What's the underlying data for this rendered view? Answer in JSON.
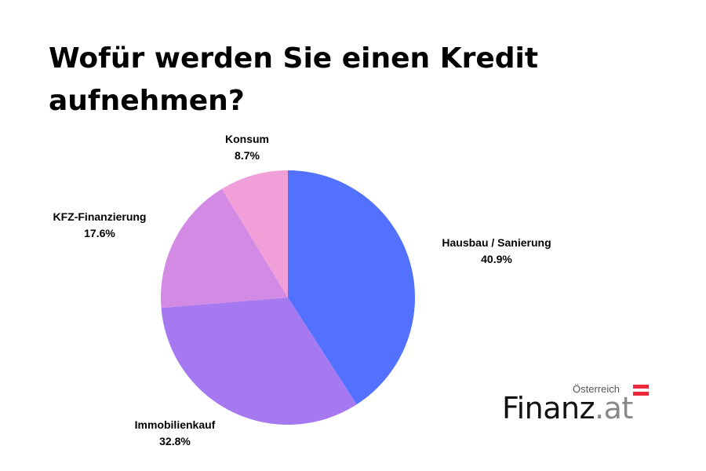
{
  "title": "Wofür werden Sie einen Kredit aufnehmen?",
  "logo": {
    "country": "Österreich",
    "brand_main": "Finanz",
    "brand_tld": ".at",
    "flag_colors": [
      "#ed2939",
      "#ffffff",
      "#ed2939"
    ]
  },
  "chart_data": {
    "type": "pie",
    "title": "Wofür werden Sie einen Kredit aufnehmen?",
    "start_angle_deg": 0,
    "direction": "clockwise",
    "slices": [
      {
        "label": "Hausbau / Sanierung",
        "value": 40.9,
        "value_label": "40.9%",
        "color": "#5271ff"
      },
      {
        "label": "Immobilienkauf",
        "value": 32.8,
        "value_label": "32.8%",
        "color": "#a679f0"
      },
      {
        "label": "KFZ-Finanzierung",
        "value": 17.6,
        "value_label": "17.6%",
        "color": "#d38ae5"
      },
      {
        "label": "Konsum",
        "value": 8.7,
        "value_label": "8.7%",
        "color": "#f19fd8"
      }
    ]
  }
}
